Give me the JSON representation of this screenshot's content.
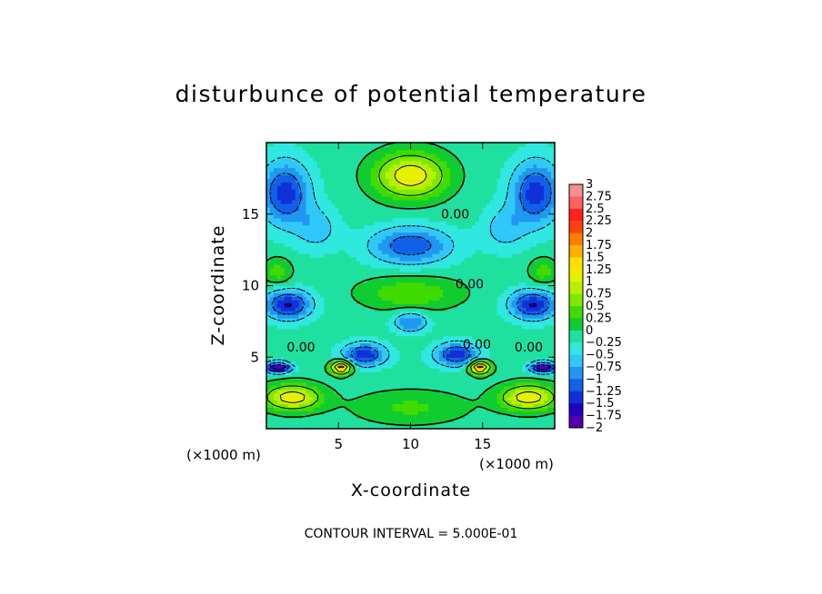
{
  "chart_data": {
    "type": "heatmap",
    "title": "disturbunce of potential temperature",
    "xlabel": "X-coordinate",
    "ylabel": "Z-coordinate",
    "x_unit": "(×1000 m)",
    "z_unit": "(×1000 m)",
    "xlim": [
      0,
      20
    ],
    "ylim": [
      0,
      20
    ],
    "x_ticks": [
      "5",
      "10",
      "15"
    ],
    "y_ticks": [
      "5",
      "10",
      "15"
    ],
    "contour_interval": "CONTOUR INTERVAL = 5.000E-01",
    "contour_labels": [
      "0.00",
      "0.00",
      "0.00",
      "0.00",
      "0.00"
    ],
    "colorbar": {
      "range": [
        -2,
        3
      ],
      "labels": [
        "3",
        "2.75",
        "2.5",
        "2.25",
        "2",
        "1.75",
        "1.5",
        "1.25",
        "1",
        "0.75",
        "0.5",
        "0.25",
        "0",
        "−0.25",
        "−0.5",
        "−0.75",
        "−1",
        "−1.25",
        "−1.5",
        "−1.75",
        "−2"
      ],
      "colors": [
        "#f09090",
        "#ff6060",
        "#ff2020",
        "#ff4010",
        "#ff8000",
        "#ffb000",
        "#ffe000",
        "#e8f000",
        "#b8f000",
        "#80e800",
        "#40dc00",
        "#10cc30",
        "#20e0a0",
        "#30e8e0",
        "#30c8f8",
        "#2098f0",
        "#1060e8",
        "#1030d8",
        "#2000c0",
        "#5000b0"
      ]
    },
    "features": [
      {
        "x": 10,
        "z": 17.7,
        "value": 1.4,
        "sx": 2.5,
        "sz": 1.6
      },
      {
        "x": 1.3,
        "z": 16.5,
        "value": -1.25,
        "sx": 1.7,
        "sz": 2.2
      },
      {
        "x": 18.7,
        "z": 16.5,
        "value": -1.25,
        "sx": 1.7,
        "sz": 2.2
      },
      {
        "x": 10,
        "z": 12.8,
        "value": -1.1,
        "sx": 2.8,
        "sz": 1.3
      },
      {
        "x": 1.5,
        "z": 8.7,
        "value": -1.4,
        "sx": 1.6,
        "sz": 1.0
      },
      {
        "x": 18.5,
        "z": 8.7,
        "value": -1.4,
        "sx": 1.6,
        "sz": 1.0
      },
      {
        "x": 6.8,
        "z": 5.2,
        "value": -1.3,
        "sx": 1.5,
        "sz": 0.8
      },
      {
        "x": 13.2,
        "z": 5.2,
        "value": -1.3,
        "sx": 1.5,
        "sz": 0.8
      },
      {
        "x": 5.2,
        "z": 4.3,
        "value": 2.0,
        "sx": 0.7,
        "sz": 0.45
      },
      {
        "x": 14.8,
        "z": 4.3,
        "value": 2.0,
        "sx": 0.7,
        "sz": 0.45
      },
      {
        "x": 0.8,
        "z": 4.3,
        "value": -2.0,
        "sx": 0.9,
        "sz": 0.35
      },
      {
        "x": 19.2,
        "z": 4.3,
        "value": -2.0,
        "sx": 0.9,
        "sz": 0.35
      },
      {
        "x": 1.8,
        "z": 2.2,
        "value": 1.4,
        "sx": 2.0,
        "sz": 0.9
      },
      {
        "x": 18.2,
        "z": 2.2,
        "value": 1.4,
        "sx": 2.0,
        "sz": 0.9
      },
      {
        "x": 10,
        "z": 9.5,
        "value": 0.6,
        "sx": 3.5,
        "sz": 1.2
      },
      {
        "x": 10,
        "z": 7.5,
        "value": -0.9,
        "sx": 1.2,
        "sz": 0.7
      },
      {
        "x": 0.8,
        "z": 11.0,
        "value": 0.5,
        "sx": 1.0,
        "sz": 1.0
      },
      {
        "x": 19.2,
        "z": 11.0,
        "value": 0.5,
        "sx": 1.0,
        "sz": 1.0
      },
      {
        "x": 10,
        "z": 1.5,
        "value": 0.45,
        "sx": 4.0,
        "sz": 1.2
      },
      {
        "x": 3.5,
        "z": 14.0,
        "value": -0.5,
        "sx": 1.5,
        "sz": 1.5
      },
      {
        "x": 16.5,
        "z": 14.0,
        "value": -0.5,
        "sx": 1.5,
        "sz": 1.5
      }
    ]
  }
}
